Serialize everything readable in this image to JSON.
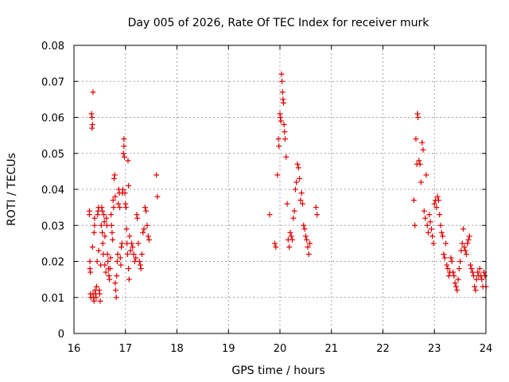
{
  "chart_data": {
    "type": "scatter",
    "title": "Day 005 of 2026, Rate Of TEC Index for receiver murk",
    "xlabel": "GPS time / hours",
    "ylabel": "ROTI / TECUs",
    "xlim": [
      16,
      24
    ],
    "ylim": [
      0,
      0.08
    ],
    "grid": true,
    "marker": "+",
    "color": "#e00000",
    "x_ticks": [
      "16",
      "17",
      "18",
      "19",
      "20",
      "21",
      "22",
      "23",
      "24"
    ],
    "y_ticks": [
      "0",
      "0.01",
      "0.02",
      "0.03",
      "0.04",
      "0.05",
      "0.06",
      "0.07",
      "0.08"
    ],
    "series": [
      {
        "name": "ROTI",
        "points": [
          [
            16.3,
            0.034
          ],
          [
            16.3,
            0.033
          ],
          [
            16.31,
            0.02
          ],
          [
            16.31,
            0.018
          ],
          [
            16.32,
            0.017
          ],
          [
            16.32,
            0.011
          ],
          [
            16.33,
            0.01
          ],
          [
            16.34,
            0.061
          ],
          [
            16.35,
            0.06
          ],
          [
            16.35,
            0.057
          ],
          [
            16.36,
            0.058
          ],
          [
            16.37,
            0.067
          ],
          [
            16.36,
            0.024
          ],
          [
            16.37,
            0.011
          ],
          [
            16.38,
            0.01
          ],
          [
            16.39,
            0.009
          ],
          [
            16.39,
            0.028
          ],
          [
            16.4,
            0.03
          ],
          [
            16.4,
            0.032
          ],
          [
            16.41,
            0.012
          ],
          [
            16.42,
            0.011
          ],
          [
            16.43,
            0.01
          ],
          [
            16.44,
            0.013
          ],
          [
            16.45,
            0.02
          ],
          [
            16.46,
            0.033
          ],
          [
            16.47,
            0.034
          ],
          [
            16.48,
            0.035
          ],
          [
            16.48,
            0.023
          ],
          [
            16.49,
            0.012
          ],
          [
            16.5,
            0.011
          ],
          [
            16.51,
            0.009
          ],
          [
            16.52,
            0.019
          ],
          [
            16.53,
            0.03
          ],
          [
            16.54,
            0.035
          ],
          [
            16.55,
            0.034
          ],
          [
            16.55,
            0.028
          ],
          [
            16.56,
            0.025
          ],
          [
            16.57,
            0.022
          ],
          [
            16.58,
            0.033
          ],
          [
            16.59,
            0.031
          ],
          [
            16.6,
            0.027
          ],
          [
            16.6,
            0.019
          ],
          [
            16.62,
            0.017
          ],
          [
            16.63,
            0.032
          ],
          [
            16.64,
            0.03
          ],
          [
            16.65,
            0.022
          ],
          [
            16.66,
            0.02
          ],
          [
            16.67,
            0.018
          ],
          [
            16.68,
            0.016
          ],
          [
            16.69,
            0.015
          ],
          [
            16.7,
            0.018
          ],
          [
            16.71,
            0.021
          ],
          [
            16.72,
            0.033
          ],
          [
            16.73,
            0.03
          ],
          [
            16.74,
            0.028
          ],
          [
            16.75,
            0.026
          ],
          [
            16.76,
            0.037
          ],
          [
            16.77,
            0.035
          ],
          [
            16.78,
            0.043
          ],
          [
            16.79,
            0.044
          ],
          [
            16.8,
            0.038
          ],
          [
            16.8,
            0.014
          ],
          [
            16.81,
            0.012
          ],
          [
            16.82,
            0.01
          ],
          [
            16.83,
            0.016
          ],
          [
            16.84,
            0.02
          ],
          [
            16.85,
            0.022
          ],
          [
            16.86,
            0.036
          ],
          [
            16.87,
            0.04
          ],
          [
            16.88,
            0.039
          ],
          [
            16.89,
            0.035
          ],
          [
            16.9,
            0.021
          ],
          [
            16.91,
            0.019
          ],
          [
            16.92,
            0.024
          ],
          [
            16.93,
            0.025
          ],
          [
            16.94,
            0.039
          ],
          [
            16.95,
            0.04
          ],
          [
            16.96,
            0.05
          ],
          [
            16.97,
            0.052
          ],
          [
            16.97,
            0.054
          ],
          [
            16.98,
            0.049
          ],
          [
            16.99,
            0.039
          ],
          [
            17.0,
            0.036
          ],
          [
            17.01,
            0.035
          ],
          [
            17.02,
            0.029
          ],
          [
            17.03,
            0.025
          ],
          [
            17.04,
            0.022
          ],
          [
            17.05,
            0.048
          ],
          [
            17.06,
            0.041
          ],
          [
            17.06,
            0.018
          ],
          [
            17.07,
            0.015
          ],
          [
            17.08,
            0.027
          ],
          [
            17.1,
            0.023
          ],
          [
            17.12,
            0.025
          ],
          [
            17.14,
            0.024
          ],
          [
            17.16,
            0.022
          ],
          [
            17.18,
            0.02
          ],
          [
            17.2,
            0.021
          ],
          [
            17.22,
            0.033
          ],
          [
            17.23,
            0.032
          ],
          [
            17.25,
            0.025
          ],
          [
            17.27,
            0.02
          ],
          [
            17.29,
            0.019
          ],
          [
            17.3,
            0.018
          ],
          [
            17.32,
            0.022
          ],
          [
            17.34,
            0.028
          ],
          [
            17.36,
            0.029
          ],
          [
            17.38,
            0.035
          ],
          [
            17.4,
            0.034
          ],
          [
            17.42,
            0.03
          ],
          [
            17.44,
            0.027
          ],
          [
            17.46,
            0.026
          ],
          [
            17.6,
            0.044
          ],
          [
            17.62,
            0.038
          ],
          [
            19.8,
            0.033
          ],
          [
            19.9,
            0.025
          ],
          [
            19.92,
            0.024
          ],
          [
            19.95,
            0.044
          ],
          [
            19.97,
            0.054
          ],
          [
            19.98,
            0.052
          ],
          [
            20.0,
            0.061
          ],
          [
            20.01,
            0.06
          ],
          [
            20.02,
            0.059
          ],
          [
            20.03,
            0.072
          ],
          [
            20.04,
            0.07
          ],
          [
            20.05,
            0.067
          ],
          [
            20.06,
            0.065
          ],
          [
            20.07,
            0.064
          ],
          [
            20.08,
            0.058
          ],
          [
            20.09,
            0.056
          ],
          [
            20.1,
            0.054
          ],
          [
            20.12,
            0.049
          ],
          [
            20.14,
            0.036
          ],
          [
            20.16,
            0.026
          ],
          [
            20.18,
            0.024
          ],
          [
            20.2,
            0.028
          ],
          [
            20.22,
            0.027
          ],
          [
            20.24,
            0.026
          ],
          [
            20.26,
            0.032
          ],
          [
            20.28,
            0.034
          ],
          [
            20.3,
            0.04
          ],
          [
            20.32,
            0.042
          ],
          [
            20.34,
            0.047
          ],
          [
            20.36,
            0.046
          ],
          [
            20.38,
            0.043
          ],
          [
            20.4,
            0.037
          ],
          [
            20.42,
            0.039
          ],
          [
            20.44,
            0.036
          ],
          [
            20.46,
            0.03
          ],
          [
            20.48,
            0.029
          ],
          [
            20.5,
            0.027
          ],
          [
            20.52,
            0.026
          ],
          [
            20.54,
            0.024
          ],
          [
            20.56,
            0.022
          ],
          [
            20.58,
            0.025
          ],
          [
            20.7,
            0.035
          ],
          [
            20.72,
            0.033
          ],
          [
            22.6,
            0.037
          ],
          [
            22.62,
            0.03
          ],
          [
            22.64,
            0.054
          ],
          [
            22.66,
            0.047
          ],
          [
            22.67,
            0.061
          ],
          [
            22.68,
            0.06
          ],
          [
            22.7,
            0.048
          ],
          [
            22.72,
            0.047
          ],
          [
            22.74,
            0.042
          ],
          [
            22.76,
            0.053
          ],
          [
            22.78,
            0.051
          ],
          [
            22.8,
            0.034
          ],
          [
            22.82,
            0.032
          ],
          [
            22.84,
            0.044
          ],
          [
            22.86,
            0.03
          ],
          [
            22.88,
            0.028
          ],
          [
            22.9,
            0.033
          ],
          [
            22.92,
            0.031
          ],
          [
            22.94,
            0.029
          ],
          [
            22.96,
            0.027
          ],
          [
            22.98,
            0.025
          ],
          [
            23.0,
            0.036
          ],
          [
            23.02,
            0.037
          ],
          [
            23.04,
            0.035
          ],
          [
            23.06,
            0.038
          ],
          [
            23.08,
            0.037
          ],
          [
            23.1,
            0.033
          ],
          [
            23.12,
            0.03
          ],
          [
            23.14,
            0.028
          ],
          [
            23.16,
            0.027
          ],
          [
            23.18,
            0.022
          ],
          [
            23.2,
            0.021
          ],
          [
            23.22,
            0.025
          ],
          [
            23.24,
            0.019
          ],
          [
            23.26,
            0.018
          ],
          [
            23.28,
            0.016
          ],
          [
            23.3,
            0.017
          ],
          [
            23.32,
            0.021
          ],
          [
            23.34,
            0.02
          ],
          [
            23.36,
            0.017
          ],
          [
            23.38,
            0.016
          ],
          [
            23.4,
            0.014
          ],
          [
            23.42,
            0.013
          ],
          [
            23.44,
            0.012
          ],
          [
            23.46,
            0.015
          ],
          [
            23.48,
            0.018
          ],
          [
            23.5,
            0.02
          ],
          [
            23.52,
            0.023
          ],
          [
            23.54,
            0.025
          ],
          [
            23.56,
            0.029
          ],
          [
            23.58,
            0.024
          ],
          [
            23.6,
            0.023
          ],
          [
            23.62,
            0.022
          ],
          [
            23.64,
            0.025
          ],
          [
            23.66,
            0.026
          ],
          [
            23.68,
            0.027
          ],
          [
            23.7,
            0.019
          ],
          [
            23.72,
            0.018
          ],
          [
            23.74,
            0.017
          ],
          [
            23.76,
            0.016
          ],
          [
            23.78,
            0.013
          ],
          [
            23.8,
            0.012
          ],
          [
            23.82,
            0.015
          ],
          [
            23.84,
            0.017
          ],
          [
            23.86,
            0.016
          ],
          [
            23.88,
            0.018
          ],
          [
            23.9,
            0.016
          ],
          [
            23.92,
            0.015
          ],
          [
            23.94,
            0.013
          ],
          [
            23.96,
            0.017
          ],
          [
            23.98,
            0.016
          ],
          [
            24.0,
            0.013
          ]
        ]
      }
    ]
  }
}
